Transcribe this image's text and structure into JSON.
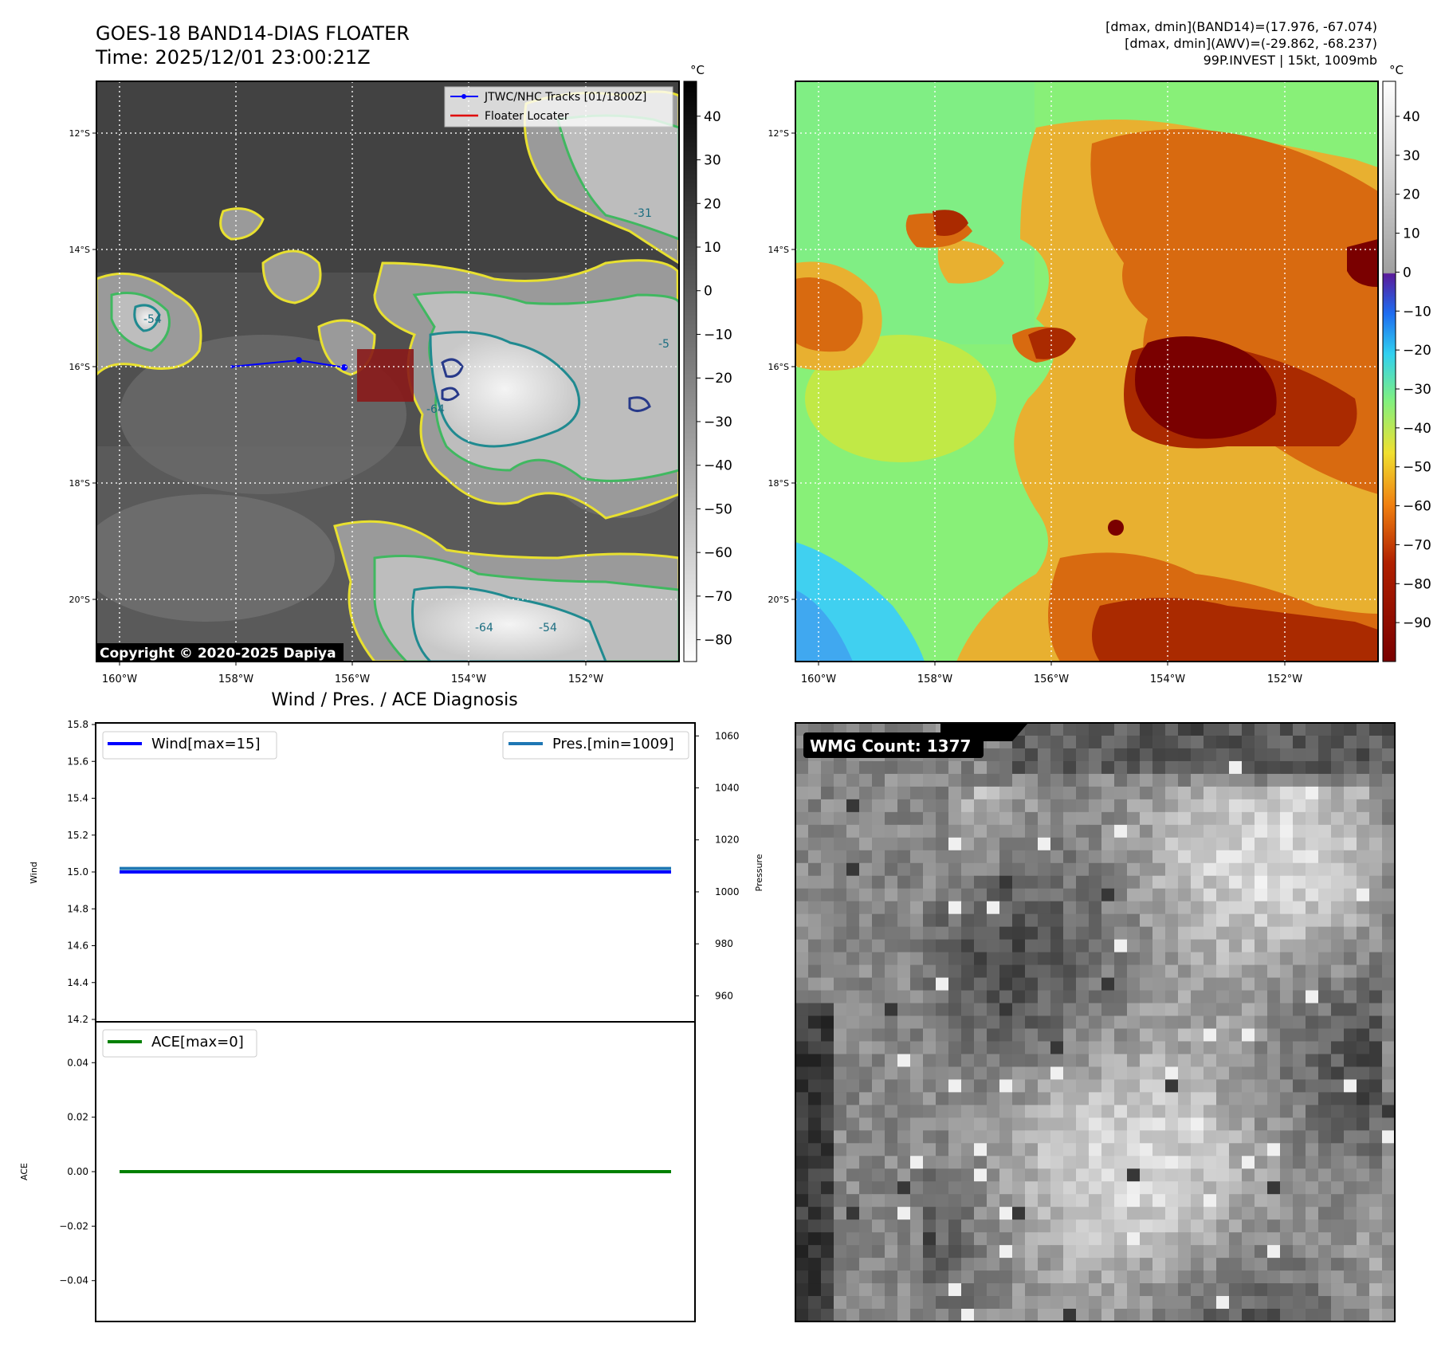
{
  "header": {
    "title_line1": "GOES-18 BAND14-DIAS FLOATER",
    "title_line2": "Time: 2025/12/01 23:00:21Z",
    "info_line1": "[dmax, dmin](BAND14)=(17.976, -67.074)",
    "info_line2": "[dmax, dmin](AWV)=(-29.862, -68.237)",
    "info_line3": "99P.INVEST | 15kt, 1009mb"
  },
  "map_left": {
    "lat_ticks": [
      "12°S",
      "14°S",
      "16°S",
      "18°S",
      "20°S"
    ],
    "lon_ticks": [
      "160°W",
      "158°W",
      "156°W",
      "154°W",
      "152°W"
    ],
    "legend": [
      "JTWC/NHC Tracks [01/1800Z]",
      "Floater Locater"
    ],
    "copyright": "Copyright © 2020-2025 Dapiya",
    "contour_labels": [
      "-54",
      "-64",
      "-64",
      "-54",
      "-31",
      "-5"
    ],
    "colorbar_unit": "°C",
    "colorbar_ticks": [
      40,
      30,
      20,
      10,
      0,
      -10,
      -20,
      -30,
      -40,
      -50,
      -60,
      -70,
      -80
    ],
    "track_color": "#0000ff",
    "locater_color": "#e00000"
  },
  "map_right": {
    "lat_ticks": [
      "12°S",
      "14°S",
      "16°S",
      "18°S",
      "20°S"
    ],
    "lon_ticks": [
      "160°W",
      "158°W",
      "156°W",
      "154°W",
      "152°W"
    ],
    "colorbar_unit": "°C",
    "colorbar_ticks": [
      40,
      30,
      20,
      10,
      0,
      -10,
      -20,
      -30,
      -40,
      -50,
      -60,
      -70,
      -80,
      -90
    ]
  },
  "diag": {
    "title": "Wind / Pres. / ACE Diagnosis",
    "wind_ylabel": "Wind",
    "pres_ylabel": "Pressure",
    "ace_ylabel": "ACE"
  },
  "wmg": {
    "label": "WMG Count: 1377"
  },
  "chart_data": [
    {
      "type": "line",
      "title": "Wind / Pres. / ACE Diagnosis",
      "ylabel": "Wind",
      "ylim": [
        14.2,
        15.8
      ],
      "yticks": [
        "15.8",
        "15.6",
        "15.4",
        "15.2",
        "15.0",
        "14.8",
        "14.6",
        "14.4",
        "14.2"
      ],
      "y2label": "Pressure",
      "y2lim": [
        950,
        1065
      ],
      "y2ticks": [
        "1060",
        "1040",
        "1020",
        "1000",
        "980",
        "960"
      ],
      "legend": "top",
      "series": [
        {
          "name": "Wind[max=15]",
          "axis": "left",
          "color": "#0000ff",
          "values": [
            15,
            15
          ]
        },
        {
          "name": "Pres.[min=1009]",
          "axis": "right",
          "color": "#1f77b4",
          "values": [
            1009,
            1009
          ]
        }
      ]
    },
    {
      "type": "line",
      "ylabel": "ACE",
      "ylim": [
        -0.055,
        0.055
      ],
      "yticks": [
        "0.04",
        "0.02",
        "0.00",
        "−0.02",
        "−0.04"
      ],
      "legend": "top-left",
      "series": [
        {
          "name": "ACE[max=0]",
          "axis": "left",
          "color": "#008000",
          "values": [
            0,
            0
          ]
        }
      ]
    }
  ]
}
